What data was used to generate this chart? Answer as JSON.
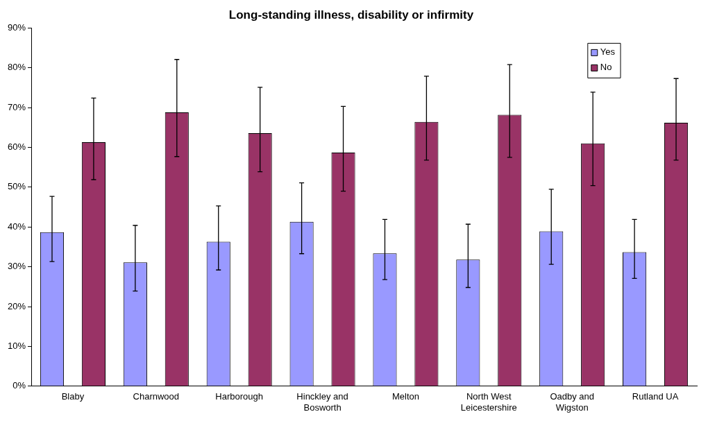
{
  "chart_data": {
    "type": "bar",
    "title": "Long-standing illness, disability or infirmity",
    "categories": [
      "Blaby",
      "Charnwood",
      "Harborough",
      "Hinckley and Bosworth",
      "Melton",
      "North West Leicestershire",
      "Oadby and Wigston",
      "Rutland UA"
    ],
    "series": [
      {
        "name": "Yes",
        "color": "#9999ff",
        "values": [
          38.7,
          31.1,
          36.3,
          41.3,
          33.4,
          31.8,
          38.9,
          33.7
        ],
        "errors": [
          [
            31.3,
            47.7
          ],
          [
            23.9,
            40.4
          ],
          [
            29.2,
            45.3
          ],
          [
            33.3,
            51.1
          ],
          [
            26.8,
            41.9
          ],
          [
            24.8,
            40.7
          ],
          [
            30.6,
            49.5
          ],
          [
            27.1,
            41.9
          ]
        ]
      },
      {
        "name": "No",
        "color": "#993366",
        "values": [
          61.3,
          68.8,
          63.6,
          58.7,
          66.4,
          68.2,
          61.0,
          66.2
        ],
        "errors": [
          [
            51.9,
            72.4
          ],
          [
            57.7,
            82.1
          ],
          [
            53.9,
            75.1
          ],
          [
            49.0,
            70.3
          ],
          [
            56.8,
            77.9
          ],
          [
            57.5,
            80.8
          ],
          [
            50.4,
            73.9
          ],
          [
            56.8,
            77.3
          ]
        ]
      }
    ],
    "ylim": [
      0,
      90
    ],
    "yticks": [
      {
        "value": 0,
        "label": "0%"
      },
      {
        "value": 10,
        "label": "10%"
      },
      {
        "value": 20,
        "label": "20%"
      },
      {
        "value": 30,
        "label": "30%"
      },
      {
        "value": 40,
        "label": "40%"
      },
      {
        "value": 50,
        "label": "50%"
      },
      {
        "value": 60,
        "label": "60%"
      },
      {
        "value": 70,
        "label": "70%"
      },
      {
        "value": 80,
        "label": "80%"
      },
      {
        "value": 90,
        "label": "90%"
      }
    ],
    "grid": false,
    "legend": "top right"
  }
}
